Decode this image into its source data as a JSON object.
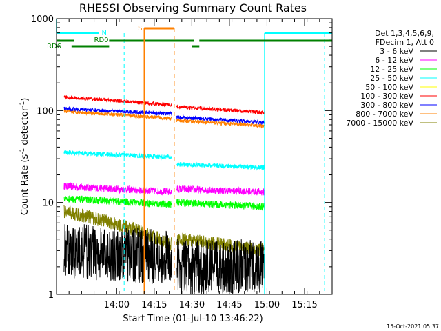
{
  "chart_data": {
    "type": "line",
    "title": "RHESSI Observing Summary Count Rates",
    "xlabel": "Start Time (01-Jul-10 13:46:22)",
    "ylabel_main": "Count Rate (s",
    "ylabel_sup1": "-1",
    "ylabel_mid": " detector",
    "ylabel_sup2": "-1",
    "ylabel_end": ")",
    "yscale": "log",
    "ylim": [
      1,
      1000
    ],
    "xlim_minutes": [
      -10,
      100
    ],
    "x_ticks": [
      {
        "label": "14:00",
        "min": 14
      },
      {
        "label": "14:15",
        "min": 29
      },
      {
        "label": "14:30",
        "min": 44
      },
      {
        "label": "14:45",
        "min": 59
      },
      {
        "label": "15:00",
        "min": 74
      },
      {
        "label": "15:15",
        "min": 89
      }
    ],
    "y_ticks": [
      {
        "label": "1",
        "value": 1
      },
      {
        "label": "10",
        "value": 10
      },
      {
        "label": "100",
        "value": 100
      },
      {
        "label": "1000",
        "value": 1000
      }
    ],
    "legend_header": [
      "Det 1,3,4,5,6,9,",
      "FDecim 1, Att 0"
    ],
    "series": [
      {
        "name": "3 - 6 keV",
        "color": "#000000",
        "seg1": [
          3.0,
          2.5
        ],
        "seg2": [
          2.0,
          2.0
        ],
        "noise": 0.6
      },
      {
        "name": "6 - 12 keV",
        "color": "#ff00ff",
        "seg1": [
          15,
          13
        ],
        "seg2": [
          14,
          13
        ],
        "noise": 0.08
      },
      {
        "name": "12 - 25 keV",
        "color": "#00ff00",
        "seg1": [
          11,
          9.5
        ],
        "seg2": [
          10,
          9
        ],
        "noise": 0.08
      },
      {
        "name": "25 - 50 keV",
        "color": "#00ffff",
        "seg1": [
          35,
          31
        ],
        "seg2": [
          26,
          24
        ],
        "noise": 0.05
      },
      {
        "name": "50 - 100 keV",
        "color": "#ffff00",
        "seg1": [
          0,
          0
        ],
        "seg2": [
          0,
          0
        ],
        "noise": 0
      },
      {
        "name": "100 - 300 keV",
        "color": "#ff0000",
        "seg1": [
          140,
          115
        ],
        "seg2": [
          110,
          95
        ],
        "noise": 0.04
      },
      {
        "name": "300 - 800 keV",
        "color": "#0000ff",
        "seg1": [
          105,
          92
        ],
        "seg2": [
          85,
          74
        ],
        "noise": 0.04
      },
      {
        "name": "800 - 7000 keV",
        "color": "#ff8000",
        "seg1": [
          98,
          82
        ],
        "seg2": [
          78,
          68
        ],
        "noise": 0.04
      },
      {
        "name": "7000 - 15000 keV",
        "color": "#808000",
        "seg1": [
          8,
          3.5
        ],
        "seg2": [
          4,
          3
        ],
        "noise": 0.15
      }
    ],
    "data_intervals_minutes": [
      [
        -7,
        36
      ],
      [
        38,
        73
      ]
    ],
    "annotations": [
      {
        "label": "N",
        "color": "#00ffff"
      },
      {
        "label": "RD0",
        "color": "#008000"
      },
      {
        "label": "RD6",
        "color": "#008000"
      },
      {
        "label": "S",
        "color": "#ff8000"
      }
    ],
    "timestamp": "15-Oct-2021 05:37"
  }
}
